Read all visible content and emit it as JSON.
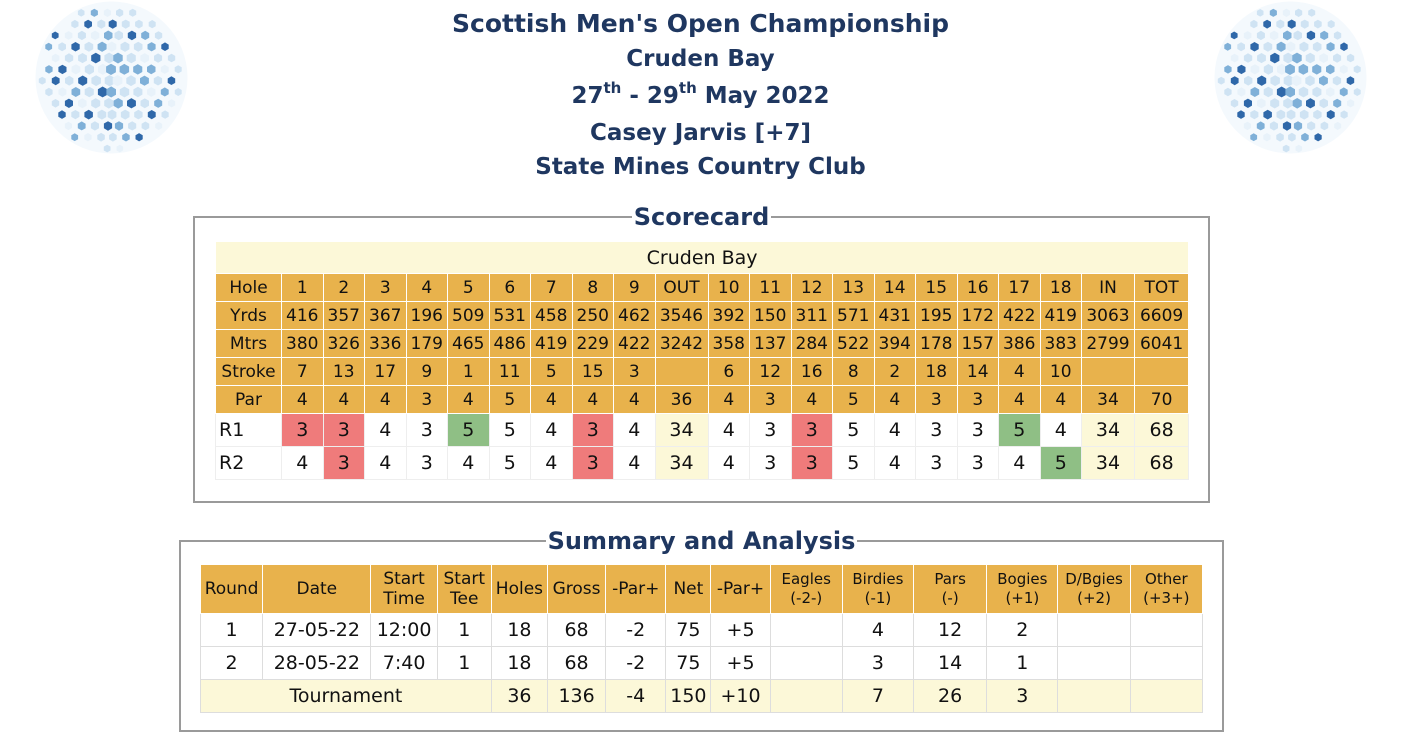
{
  "header": {
    "title": "Scottish Men's Open Championship",
    "course": "Cruden Bay",
    "date_start_day": "27",
    "date_start_suffix": "th",
    "date_sep": " - ",
    "date_end_day": "29",
    "date_end_suffix": "th",
    "date_month_year": " May 2022",
    "player": "Casey Jarvis [+7]",
    "club": "State Mines Country Club"
  },
  "colors": {
    "heading": "#1f3760",
    "header_cell": "#e8b24c",
    "total_cell": "#fcf8d8",
    "birdie": "#ef7b7b",
    "bogey": "#8fbf85"
  },
  "scorecard": {
    "legend": "Scorecard",
    "course_name": "Cruden Bay",
    "rows": [
      {
        "label": "Hole",
        "cells": [
          "1",
          "2",
          "3",
          "4",
          "5",
          "6",
          "7",
          "8",
          "9",
          "OUT",
          "10",
          "11",
          "12",
          "13",
          "14",
          "15",
          "16",
          "17",
          "18",
          "IN",
          "TOT"
        ]
      },
      {
        "label": "Yrds",
        "cells": [
          "416",
          "357",
          "367",
          "196",
          "509",
          "531",
          "458",
          "250",
          "462",
          "3546",
          "392",
          "150",
          "311",
          "571",
          "431",
          "195",
          "172",
          "422",
          "419",
          "3063",
          "6609"
        ]
      },
      {
        "label": "Mtrs",
        "cells": [
          "380",
          "326",
          "336",
          "179",
          "465",
          "486",
          "419",
          "229",
          "422",
          "3242",
          "358",
          "137",
          "284",
          "522",
          "394",
          "178",
          "157",
          "386",
          "383",
          "2799",
          "6041"
        ]
      },
      {
        "label": "Stroke",
        "cells": [
          "7",
          "13",
          "17",
          "9",
          "1",
          "11",
          "5",
          "15",
          "3",
          "",
          "6",
          "12",
          "16",
          "8",
          "2",
          "18",
          "14",
          "4",
          "10",
          "",
          ""
        ]
      },
      {
        "label": "Par",
        "cells": [
          "4",
          "4",
          "4",
          "3",
          "4",
          "5",
          "4",
          "4",
          "4",
          "36",
          "4",
          "3",
          "4",
          "5",
          "4",
          "3",
          "3",
          "4",
          "4",
          "34",
          "70"
        ]
      }
    ],
    "rounds": [
      {
        "label": "R1",
        "cells": [
          "3",
          "3",
          "4",
          "3",
          "5",
          "5",
          "4",
          "3",
          "4",
          "34",
          "4",
          "3",
          "3",
          "5",
          "4",
          "3",
          "3",
          "5",
          "4",
          "34",
          "68"
        ],
        "marks": [
          "birdie",
          "birdie",
          "",
          "",
          "bogey",
          "",
          "",
          "birdie",
          "",
          "tot",
          "",
          "",
          "birdie",
          "",
          "",
          "",
          "",
          "bogey",
          "",
          "tot",
          "tot"
        ]
      },
      {
        "label": "R2",
        "cells": [
          "4",
          "3",
          "4",
          "3",
          "4",
          "5",
          "4",
          "3",
          "4",
          "34",
          "4",
          "3",
          "3",
          "5",
          "4",
          "3",
          "3",
          "4",
          "5",
          "34",
          "68"
        ],
        "marks": [
          "",
          "birdie",
          "",
          "",
          "",
          "",
          "",
          "birdie",
          "",
          "tot",
          "",
          "",
          "birdie",
          "",
          "",
          "",
          "",
          "",
          "bogey",
          "tot",
          "tot"
        ]
      }
    ]
  },
  "summary": {
    "legend": "Summary and Analysis",
    "headers": [
      {
        "l1": "Round",
        "l2": ""
      },
      {
        "l1": "Date",
        "l2": ""
      },
      {
        "l1": "Start",
        "l2": "Time"
      },
      {
        "l1": "Start",
        "l2": "Tee"
      },
      {
        "l1": "Holes",
        "l2": ""
      },
      {
        "l1": "Gross",
        "l2": ""
      },
      {
        "l1": "-Par+",
        "l2": ""
      },
      {
        "l1": "Net",
        "l2": ""
      },
      {
        "l1": "-Par+",
        "l2": ""
      },
      {
        "l1": "Eagles",
        "l2": "(-2-)"
      },
      {
        "l1": "Birdies",
        "l2": "(-1)"
      },
      {
        "l1": "Pars",
        "l2": "(-)"
      },
      {
        "l1": "Bogies",
        "l2": "(+1)"
      },
      {
        "l1": "D/Bgies",
        "l2": "(+2)"
      },
      {
        "l1": "Other",
        "l2": "(+3+)"
      }
    ],
    "rows": [
      [
        "1",
        "27-05-22",
        "12:00",
        "1",
        "18",
        "68",
        "-2",
        "75",
        "+5",
        "",
        "4",
        "12",
        "2",
        "",
        ""
      ],
      [
        "2",
        "28-05-22",
        "7:40",
        "1",
        "18",
        "68",
        "-2",
        "75",
        "+5",
        "",
        "3",
        "14",
        "1",
        "",
        ""
      ]
    ],
    "total": {
      "label": "Tournament",
      "cells": [
        "36",
        "136",
        "-4",
        "150",
        "+10",
        "",
        "7",
        "26",
        "3",
        "",
        ""
      ]
    }
  }
}
